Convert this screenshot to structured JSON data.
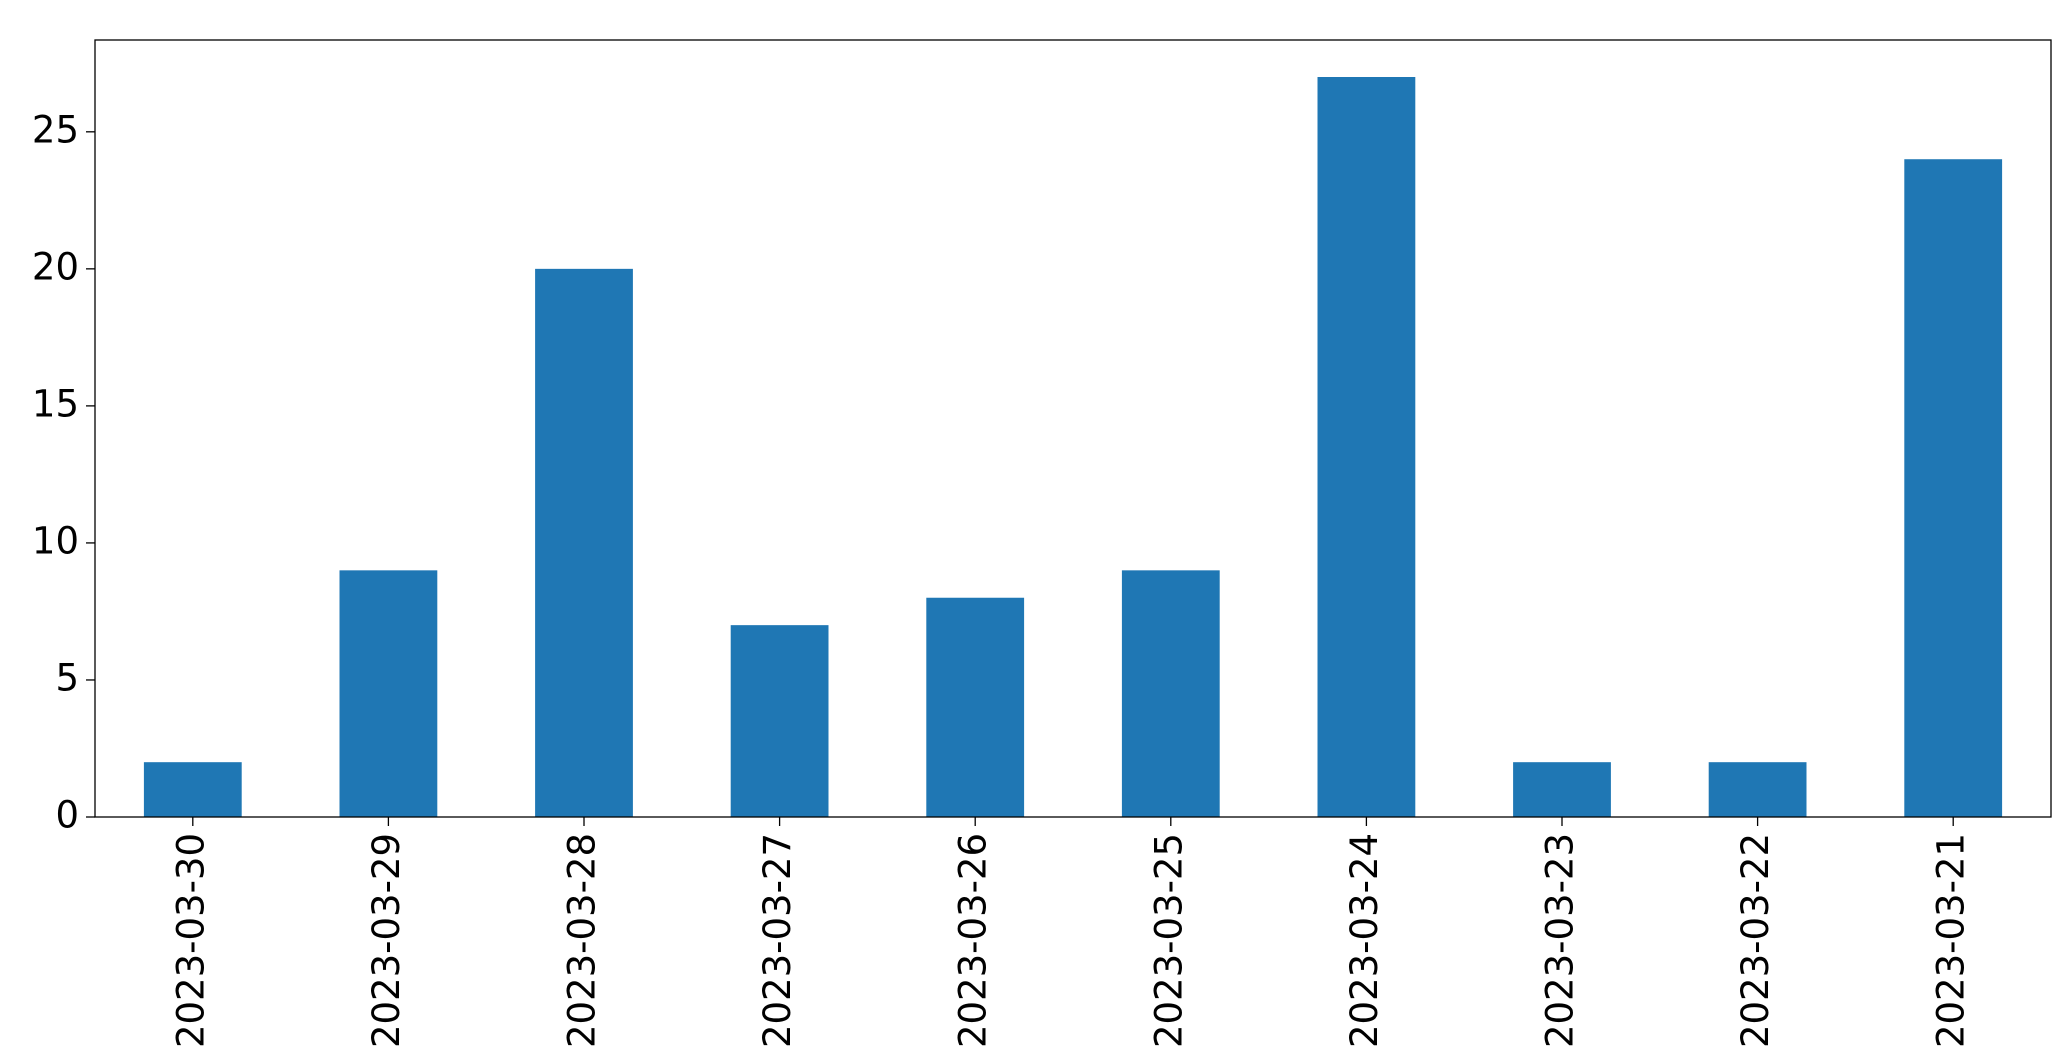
{
  "chart_data": {
    "type": "bar",
    "categories": [
      "2023-03-30",
      "2023-03-29",
      "2023-03-28",
      "2023-03-27",
      "2023-03-26",
      "2023-03-25",
      "2023-03-24",
      "2023-03-23",
      "2023-03-22",
      "2023-03-21"
    ],
    "values": [
      2,
      9,
      20,
      7,
      8,
      9,
      27,
      2,
      2,
      24
    ],
    "color": "#1f77b4",
    "ylim": [
      0,
      28.35
    ],
    "yticks": [
      0,
      5,
      10,
      15,
      20,
      25
    ],
    "grid": false
  }
}
